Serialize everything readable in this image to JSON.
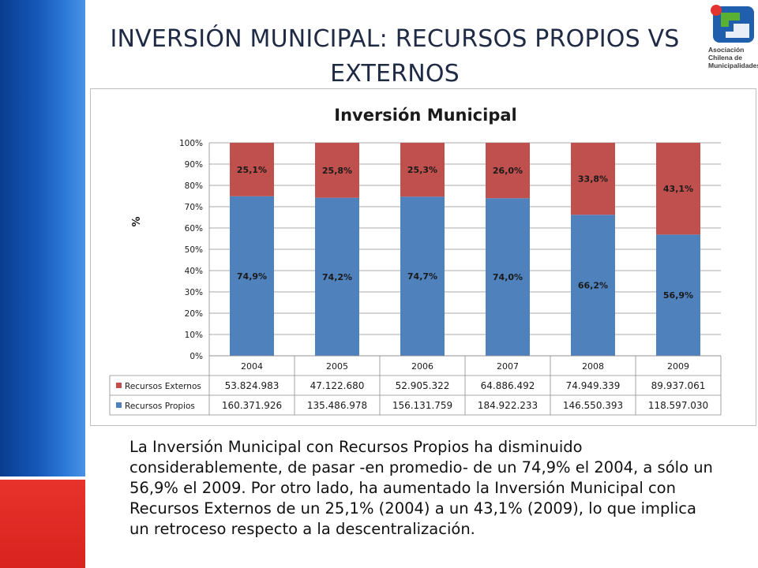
{
  "slide": {
    "title": "INVERSIÓN MUNICIPAL: RECURSOS PROPIOS VS EXTERNOS",
    "paragraph": "La Inversión Municipal con Recursos Propios ha disminuido considerablemente, de pasar -en promedio- de un 74,9% el 2004, a sólo un 56,9% el 2009. Por otro lado, ha aumentado la Inversión Municipal con Recursos Externos de un 25,1% (2004) a un 43,1% (2009), lo que implica un retroceso respecto a la descentralización."
  },
  "logo": {
    "line1": "Asociación",
    "line2": "Chilena de",
    "line3": "Municipalidades",
    "colors": {
      "blue": "#1f5fae",
      "green": "#5ab131",
      "red": "#e3342f"
    }
  },
  "colors": {
    "propios": "#4f81bd",
    "externos": "#c0504d",
    "side_blue": "#1658b8",
    "side_red": "#e8322c"
  },
  "chart_data": {
    "type": "bar",
    "stacked": true,
    "title": "Inversión Municipal",
    "ylabel": "%",
    "ylim": [
      0,
      100
    ],
    "yticks": [
      "0%",
      "10%",
      "20%",
      "30%",
      "40%",
      "50%",
      "60%",
      "70%",
      "80%",
      "90%",
      "100%"
    ],
    "categories": [
      "2004",
      "2005",
      "2006",
      "2007",
      "2008",
      "2009"
    ],
    "series": [
      {
        "name": "Recursos Propios",
        "color": "#4f81bd",
        "values": [
          74.9,
          74.2,
          74.7,
          74.0,
          66.2,
          56.9
        ],
        "labels": [
          "74,9%",
          "74,2%",
          "74,7%",
          "74,0%",
          "66,2%",
          "56,9%"
        ],
        "table": [
          "160.371.926",
          "135.486.978",
          "156.131.759",
          "184.922.233",
          "146.550.393",
          "118.597.030"
        ]
      },
      {
        "name": "Recursos Externos",
        "color": "#c0504d",
        "values": [
          25.1,
          25.8,
          25.3,
          26.0,
          33.8,
          43.1
        ],
        "labels": [
          "25,1%",
          "25,8%",
          "25,3%",
          "26,0%",
          "33,8%",
          "43,1%"
        ],
        "table": [
          "53.824.983",
          "47.122.680",
          "52.905.322",
          "64.886.492",
          "74.949.339",
          "89.937.061"
        ]
      }
    ],
    "grid": true,
    "legend": "data-table"
  }
}
